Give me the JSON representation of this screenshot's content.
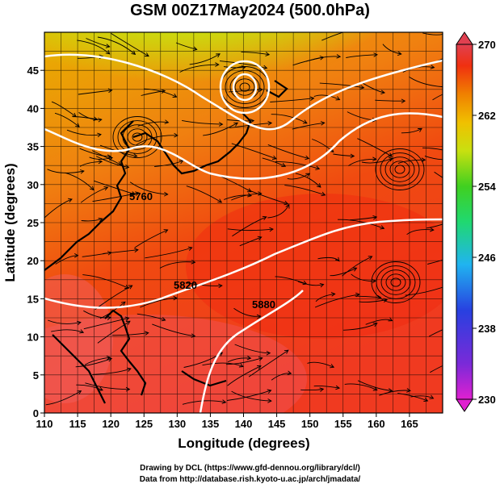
{
  "title": "GSM 00Z17May2024 (500.0hPa)",
  "x_axis": {
    "label": "Longitude (degrees)",
    "range": [
      110,
      170
    ],
    "ticks": [
      "110",
      "115",
      "120",
      "125",
      "130",
      "135",
      "140",
      "145",
      "150",
      "155",
      "160",
      "165"
    ]
  },
  "y_axis": {
    "label": "Latitude  (degrees)",
    "range": [
      0,
      50
    ],
    "ticks": [
      "0",
      "5",
      "10",
      "15",
      "20",
      "25",
      "30",
      "35",
      "40",
      "45"
    ]
  },
  "colorbar": {
    "range": [
      230,
      270
    ],
    "ticks": [
      "230",
      "238",
      "246",
      "254",
      "262",
      "270"
    ],
    "colors": [
      "#e020d0",
      "#7a2ad8",
      "#2840e0",
      "#20b4f0",
      "#20d870",
      "#40d020",
      "#c8e010",
      "#f0c000",
      "#f08000",
      "#f03010",
      "#e04050"
    ]
  },
  "contours": [
    {
      "label": "5760"
    },
    {
      "label": "5820"
    },
    {
      "label": "5880"
    }
  ],
  "credits": {
    "line1": "Drawing by DCL (https://www.gfd-dennou.org/library/dcl/)",
    "line2": "Data from http://database.rish.kyoto-u.ac.jp/arch/jmadata/"
  }
}
